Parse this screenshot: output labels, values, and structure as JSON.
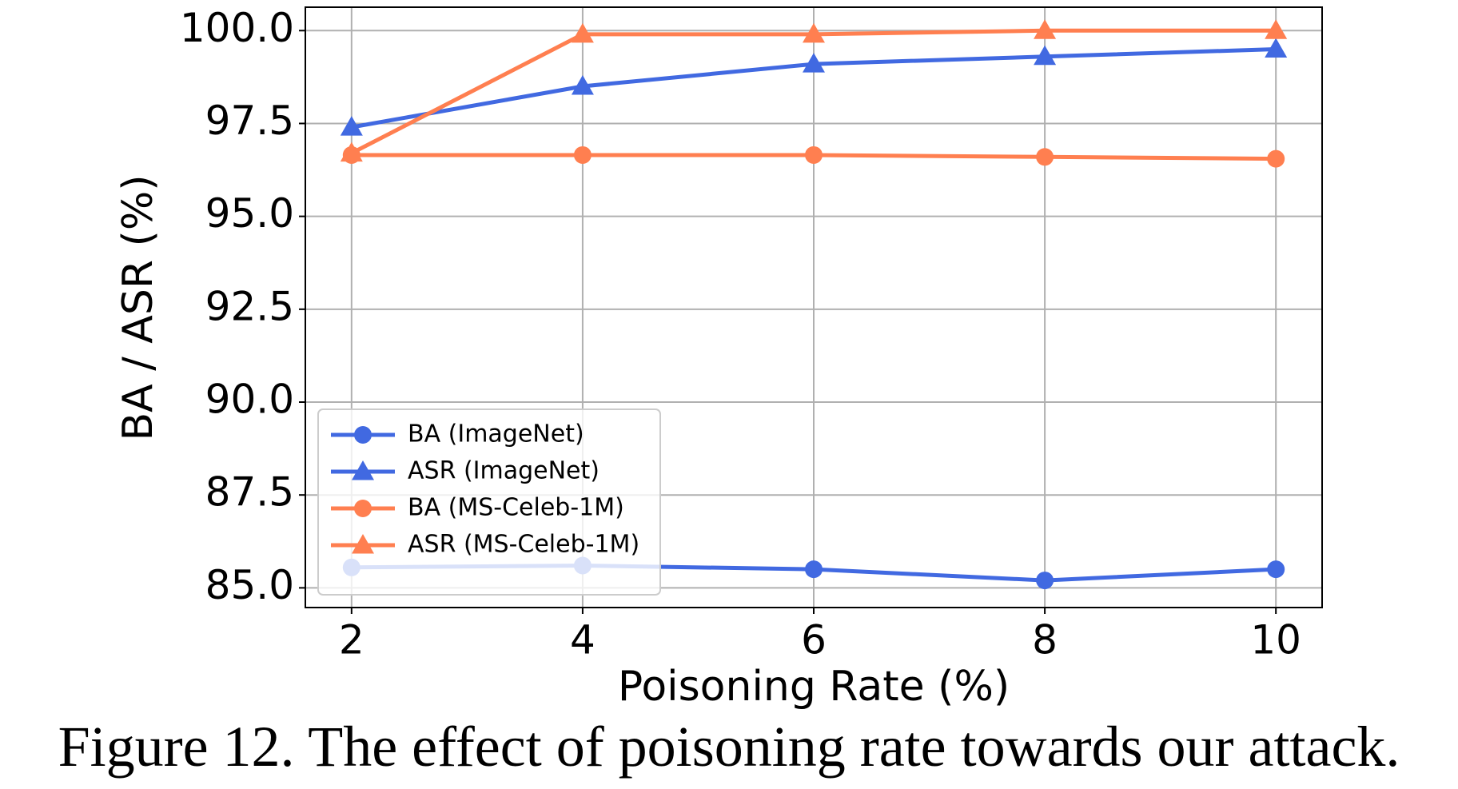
{
  "chart_data": {
    "type": "line",
    "caption": "Figure 12. The effect of poisoning rate towards our attack.",
    "xlabel": "Poisoning Rate (%)",
    "ylabel": "BA / ASR (%)",
    "x": [
      2,
      4,
      6,
      8,
      10
    ],
    "series": [
      {
        "name": "BA (ImageNet)",
        "color": "#4169e1",
        "marker": "circle",
        "values": [
          85.55,
          85.6,
          85.5,
          85.2,
          85.5
        ]
      },
      {
        "name": "ASR (ImageNet)",
        "color": "#4169e1",
        "marker": "triangle",
        "values": [
          97.4,
          98.5,
          99.1,
          99.3,
          99.5
        ]
      },
      {
        "name": "BA (MS-Celeb-1M)",
        "color": "#ff7f50",
        "marker": "circle",
        "values": [
          96.65,
          96.65,
          96.65,
          96.6,
          96.55
        ]
      },
      {
        "name": "ASR (MS-Celeb-1M)",
        "color": "#ff7f50",
        "marker": "triangle",
        "values": [
          96.7,
          99.9,
          99.9,
          100.0,
          100.0
        ]
      }
    ],
    "xlim": [
      1.6,
      10.4
    ],
    "ylim": [
      84.47,
      100.63
    ],
    "xticks": [
      2,
      4,
      6,
      8,
      10
    ],
    "yticks": [
      {
        "value": 85,
        "label": "85.0"
      },
      {
        "value": 87.5,
        "label": "87.5"
      },
      {
        "value": 90,
        "label": "90.0"
      },
      {
        "value": 92.5,
        "label": "92.5"
      },
      {
        "value": 95,
        "label": "95.0"
      },
      {
        "value": 97.5,
        "label": "97.5"
      },
      {
        "value": 100,
        "label": "100.0"
      }
    ],
    "grid": true,
    "legend": "lower left"
  }
}
